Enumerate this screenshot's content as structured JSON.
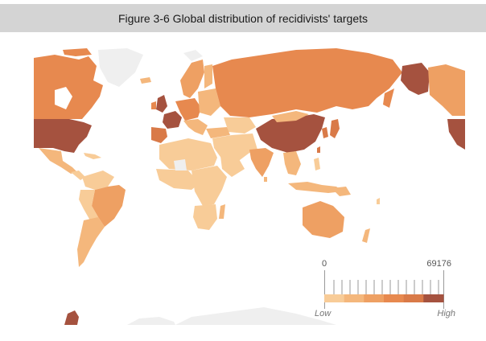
{
  "figure": {
    "title": "Figure 3-6 Global distribution of recidivists' targets"
  },
  "legend": {
    "min_value": "0",
    "max_value": "69176",
    "low_label": "Low",
    "high_label": "High",
    "colors": [
      "#f8cc98",
      "#f4b77c",
      "#eea063",
      "#e7894f",
      "#d97a48",
      "#a5523f"
    ]
  },
  "map": {
    "color_scale": "sequential orange-brown",
    "no_data_color": "#efefef",
    "highest_regions": [
      "United States",
      "China",
      "Alaska (United States)",
      "United Kingdom",
      "France"
    ],
    "high_regions": [
      "Russia",
      "Canada",
      "Brazil",
      "India",
      "Australia",
      "Japan"
    ],
    "low_regions": [
      "Africa",
      "Middle East",
      "South America (rest)",
      "Central Asia"
    ]
  }
}
